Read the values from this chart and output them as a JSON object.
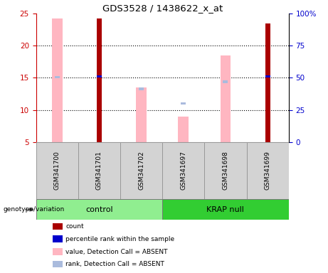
{
  "title": "GDS3528 / 1438622_x_at",
  "samples": [
    "GSM341700",
    "GSM341701",
    "GSM341702",
    "GSM341697",
    "GSM341698",
    "GSM341699"
  ],
  "ylim_left": [
    5,
    25
  ],
  "ylim_right": [
    0,
    100
  ],
  "yticks_left": [
    5,
    10,
    15,
    20,
    25
  ],
  "ytick_labels_right": [
    "0",
    "25",
    "50",
    "75",
    "100%"
  ],
  "bars": {
    "count": {
      "color": "#AA0000",
      "values": [
        null,
        24.2,
        null,
        null,
        null,
        23.5
      ],
      "bar_width": 0.12
    },
    "percentile_rank": {
      "color": "#0000CC",
      "values": [
        null,
        15.2,
        null,
        null,
        null,
        15.2
      ],
      "bar_width": 0.12
    },
    "value_absent": {
      "color": "#FFB6C1",
      "values": [
        24.2,
        null,
        13.5,
        9.0,
        18.5,
        null
      ],
      "bar_width": 0.25
    },
    "rank_absent": {
      "color": "#AABBDD",
      "values": [
        15.3,
        null,
        13.5,
        11.2,
        14.6,
        null
      ],
      "bar_width": 0.12
    }
  },
  "group_colors": {
    "control": "#90EE90",
    "KRAP null": "#32CD32"
  },
  "axis_color_left": "#CC0000",
  "axis_color_right": "#0000CC",
  "grid_yticks": [
    10,
    15,
    20
  ],
  "legend_items": [
    {
      "label": "count",
      "color": "#AA0000"
    },
    {
      "label": "percentile rank within the sample",
      "color": "#0000CC"
    },
    {
      "label": "value, Detection Call = ABSENT",
      "color": "#FFB6C1"
    },
    {
      "label": "rank, Detection Call = ABSENT",
      "color": "#AABBDD"
    }
  ]
}
